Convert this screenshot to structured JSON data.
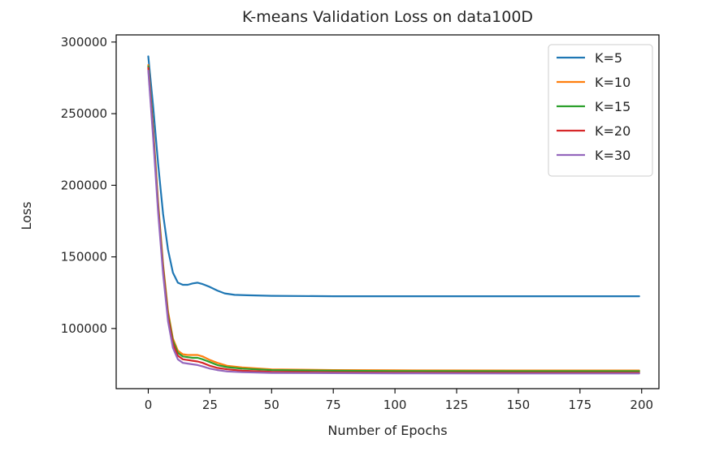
{
  "chart_data": {
    "type": "line",
    "title": "K-means Validation Loss on data100D",
    "xlabel": "Number of Epochs",
    "ylabel": "Loss",
    "xlim": [
      -13,
      207
    ],
    "ylim": [
      58000,
      305000
    ],
    "xticks": [
      0,
      25,
      50,
      75,
      100,
      125,
      150,
      175,
      200
    ],
    "yticks": [
      100000,
      150000,
      200000,
      250000,
      300000
    ],
    "grid": false,
    "legend_position": "top-right",
    "series": [
      {
        "name": "K=5",
        "color": "#1f77b4",
        "points": [
          [
            0,
            290000
          ],
          [
            2,
            255000
          ],
          [
            4,
            215000
          ],
          [
            6,
            180000
          ],
          [
            8,
            155000
          ],
          [
            10,
            139000
          ],
          [
            12,
            132000
          ],
          [
            14,
            130500
          ],
          [
            16,
            130500
          ],
          [
            18,
            131500
          ],
          [
            20,
            132000
          ],
          [
            22,
            131000
          ],
          [
            25,
            129000
          ],
          [
            28,
            126500
          ],
          [
            31,
            124500
          ],
          [
            35,
            123500
          ],
          [
            40,
            123200
          ],
          [
            50,
            122800
          ],
          [
            75,
            122500
          ],
          [
            100,
            122500
          ],
          [
            150,
            122500
          ],
          [
            199,
            122500
          ]
        ]
      },
      {
        "name": "K=10",
        "color": "#ff7f0e",
        "points": [
          [
            0,
            284000
          ],
          [
            2,
            240000
          ],
          [
            4,
            188000
          ],
          [
            6,
            145000
          ],
          [
            8,
            112000
          ],
          [
            10,
            93000
          ],
          [
            12,
            84500
          ],
          [
            14,
            82000
          ],
          [
            16,
            81500
          ],
          [
            18,
            81500
          ],
          [
            20,
            81500
          ],
          [
            22,
            80500
          ],
          [
            25,
            78000
          ],
          [
            28,
            76000
          ],
          [
            32,
            74000
          ],
          [
            38,
            72800
          ],
          [
            50,
            71500
          ],
          [
            75,
            71000
          ],
          [
            100,
            70800
          ],
          [
            150,
            70700
          ],
          [
            199,
            70700
          ]
        ]
      },
      {
        "name": "K=15",
        "color": "#2ca02c",
        "points": [
          [
            0,
            283000
          ],
          [
            2,
            238000
          ],
          [
            4,
            186000
          ],
          [
            6,
            143000
          ],
          [
            8,
            110000
          ],
          [
            10,
            91500
          ],
          [
            12,
            83000
          ],
          [
            14,
            80500
          ],
          [
            16,
            80000
          ],
          [
            18,
            79500
          ],
          [
            20,
            79500
          ],
          [
            22,
            78500
          ],
          [
            25,
            76500
          ],
          [
            28,
            74500
          ],
          [
            32,
            73000
          ],
          [
            38,
            72000
          ],
          [
            50,
            71000
          ],
          [
            75,
            70500
          ],
          [
            100,
            70300
          ],
          [
            150,
            70200
          ],
          [
            199,
            70200
          ]
        ]
      },
      {
        "name": "K=20",
        "color": "#d62728",
        "points": [
          [
            0,
            282000
          ],
          [
            2,
            236000
          ],
          [
            4,
            184000
          ],
          [
            6,
            141000
          ],
          [
            8,
            108000
          ],
          [
            10,
            89500
          ],
          [
            12,
            81000
          ],
          [
            14,
            78500
          ],
          [
            16,
            78000
          ],
          [
            18,
            77500
          ],
          [
            20,
            77000
          ],
          [
            22,
            76000
          ],
          [
            25,
            74000
          ],
          [
            28,
            72500
          ],
          [
            32,
            71500
          ],
          [
            38,
            70500
          ],
          [
            50,
            69800
          ],
          [
            75,
            69400
          ],
          [
            100,
            69200
          ],
          [
            150,
            69100
          ],
          [
            199,
            69100
          ]
        ]
      },
      {
        "name": "K=30",
        "color": "#9467bd",
        "points": [
          [
            0,
            280000
          ],
          [
            2,
            233000
          ],
          [
            4,
            181000
          ],
          [
            6,
            138000
          ],
          [
            8,
            105000
          ],
          [
            10,
            86500
          ],
          [
            12,
            78500
          ],
          [
            14,
            76000
          ],
          [
            16,
            75500
          ],
          [
            18,
            75000
          ],
          [
            20,
            74500
          ],
          [
            22,
            73500
          ],
          [
            25,
            72000
          ],
          [
            28,
            71000
          ],
          [
            32,
            70000
          ],
          [
            38,
            69500
          ],
          [
            50,
            69000
          ],
          [
            75,
            68800
          ],
          [
            100,
            68700
          ],
          [
            150,
            68600
          ],
          [
            199,
            68600
          ]
        ]
      }
    ]
  }
}
